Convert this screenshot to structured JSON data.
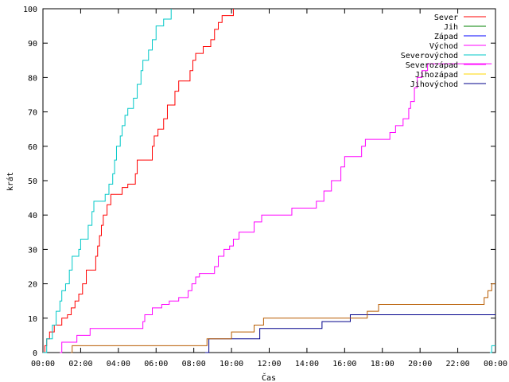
{
  "chart_data": {
    "type": "line",
    "xlabel": "Čas",
    "ylabel": "krát",
    "xlim": [
      0,
      24
    ],
    "ylim": [
      0,
      100
    ],
    "x_ticks": [
      {
        "v": 0,
        "label": "00:00"
      },
      {
        "v": 2,
        "label": "02:00"
      },
      {
        "v": 4,
        "label": "04:00"
      },
      {
        "v": 6,
        "label": "06:00"
      },
      {
        "v": 8,
        "label": "08:00"
      },
      {
        "v": 10,
        "label": "10:00"
      },
      {
        "v": 12,
        "label": "12:00"
      },
      {
        "v": 14,
        "label": "14:00"
      },
      {
        "v": 16,
        "label": "16:00"
      },
      {
        "v": 18,
        "label": "18:00"
      },
      {
        "v": 20,
        "label": "20:00"
      },
      {
        "v": 22,
        "label": "22:00"
      },
      {
        "v": 24,
        "label": "00:00"
      }
    ],
    "y_ticks": [
      0,
      10,
      20,
      30,
      40,
      50,
      60,
      70,
      80,
      90,
      100
    ],
    "grid": false,
    "legend_position": "top-right",
    "series": [
      {
        "name": "Sever",
        "color": "#ff0000",
        "step": true,
        "points": [
          [
            0,
            0
          ],
          [
            0.1,
            2
          ],
          [
            0.2,
            4
          ],
          [
            0.35,
            6
          ],
          [
            0.6,
            8
          ],
          [
            1.0,
            10
          ],
          [
            1.3,
            11
          ],
          [
            1.5,
            13
          ],
          [
            1.7,
            15
          ],
          [
            1.9,
            17
          ],
          [
            2.1,
            20
          ],
          [
            2.3,
            24
          ],
          [
            2.8,
            28
          ],
          [
            2.9,
            31
          ],
          [
            3.0,
            34
          ],
          [
            3.1,
            37
          ],
          [
            3.2,
            40
          ],
          [
            3.4,
            43
          ],
          [
            3.6,
            46
          ],
          [
            4.2,
            48
          ],
          [
            4.5,
            49
          ],
          [
            4.9,
            52
          ],
          [
            5.0,
            56
          ],
          [
            5.8,
            60
          ],
          [
            5.9,
            63
          ],
          [
            6.1,
            65
          ],
          [
            6.4,
            68
          ],
          [
            6.6,
            72
          ],
          [
            7.0,
            76
          ],
          [
            7.2,
            79
          ],
          [
            7.8,
            82
          ],
          [
            7.95,
            85
          ],
          [
            8.1,
            87
          ],
          [
            8.5,
            89
          ],
          [
            8.9,
            91
          ],
          [
            9.1,
            94
          ],
          [
            9.3,
            96
          ],
          [
            9.5,
            98
          ],
          [
            10.1,
            100
          ]
        ]
      },
      {
        "name": "Jih",
        "color": "#008000",
        "step": true,
        "points": []
      },
      {
        "name": "Západ",
        "color": "#0000ff",
        "step": true,
        "points": []
      },
      {
        "name": "Východ",
        "color": "#ff00ff",
        "step": true,
        "points": [
          [
            0.9,
            0
          ],
          [
            1.0,
            3
          ],
          [
            1.8,
            5
          ],
          [
            2.5,
            7
          ],
          [
            5.3,
            9
          ],
          [
            5.4,
            11
          ],
          [
            5.8,
            13
          ],
          [
            6.3,
            14
          ],
          [
            6.7,
            15
          ],
          [
            7.2,
            16
          ],
          [
            7.7,
            18
          ],
          [
            7.9,
            20
          ],
          [
            8.1,
            22
          ],
          [
            8.3,
            23
          ],
          [
            9.1,
            25
          ],
          [
            9.3,
            28
          ],
          [
            9.6,
            30
          ],
          [
            9.9,
            31
          ],
          [
            10.1,
            33
          ],
          [
            10.4,
            35
          ],
          [
            11.2,
            38
          ],
          [
            11.6,
            40
          ],
          [
            13.2,
            42
          ],
          [
            14.5,
            44
          ],
          [
            14.9,
            47
          ],
          [
            15.3,
            50
          ],
          [
            15.8,
            54
          ],
          [
            16.0,
            57
          ],
          [
            16.9,
            60
          ],
          [
            17.1,
            62
          ],
          [
            18.4,
            64
          ],
          [
            18.7,
            66
          ],
          [
            19.1,
            68
          ],
          [
            19.4,
            71
          ],
          [
            19.5,
            73
          ],
          [
            19.7,
            77
          ],
          [
            19.85,
            80
          ],
          [
            20.1,
            82
          ],
          [
            20.4,
            84
          ],
          [
            23.8,
            84
          ]
        ]
      },
      {
        "name": "Severovýchod",
        "color": "#00c8c8",
        "step": true,
        "points": [
          [
            0,
            0
          ],
          [
            0.2,
            4
          ],
          [
            0.5,
            8
          ],
          [
            0.7,
            12
          ],
          [
            0.9,
            15
          ],
          [
            1.0,
            18
          ],
          [
            1.2,
            20
          ],
          [
            1.4,
            24
          ],
          [
            1.55,
            28
          ],
          [
            1.9,
            30
          ],
          [
            2.0,
            33
          ],
          [
            2.4,
            37
          ],
          [
            2.6,
            41
          ],
          [
            2.7,
            44
          ],
          [
            3.3,
            46
          ],
          [
            3.5,
            49
          ],
          [
            3.7,
            52
          ],
          [
            3.8,
            56
          ],
          [
            3.9,
            60
          ],
          [
            4.1,
            63
          ],
          [
            4.2,
            66
          ],
          [
            4.35,
            69
          ],
          [
            4.5,
            71
          ],
          [
            4.8,
            74
          ],
          [
            5.0,
            78
          ],
          [
            5.2,
            82
          ],
          [
            5.3,
            85
          ],
          [
            5.6,
            88
          ],
          [
            5.8,
            91
          ],
          [
            6.0,
            95
          ],
          [
            6.4,
            97
          ],
          [
            6.8,
            100
          ]
        ]
      },
      {
        "name": "Severozápad",
        "color": "#ff00ff",
        "step": true,
        "points": []
      },
      {
        "name": "Jihozápad",
        "color": "#ffd700",
        "step": true,
        "points": []
      },
      {
        "name": "Jihovýchod",
        "color": "#00008b",
        "step": true,
        "points": [
          [
            8.6,
            0
          ],
          [
            8.8,
            4
          ],
          [
            11.5,
            7
          ],
          [
            14.8,
            9
          ],
          [
            16.3,
            11
          ],
          [
            24,
            11
          ]
        ]
      },
      {
        "name": "",
        "color": "#b85c00",
        "step": true,
        "points": [
          [
            1.5,
            0
          ],
          [
            1.55,
            2
          ],
          [
            8.6,
            2
          ],
          [
            8.7,
            4
          ],
          [
            10.0,
            6
          ],
          [
            11.2,
            8
          ],
          [
            11.7,
            10
          ],
          [
            17.2,
            12
          ],
          [
            17.8,
            14
          ],
          [
            23.4,
            16
          ],
          [
            23.6,
            18
          ],
          [
            23.8,
            20
          ],
          [
            24,
            20
          ]
        ]
      },
      {
        "name": "",
        "color": "#00c8c8",
        "step": true,
        "points": [
          [
            23.7,
            0
          ],
          [
            23.8,
            2
          ],
          [
            24,
            2
          ]
        ]
      }
    ]
  }
}
